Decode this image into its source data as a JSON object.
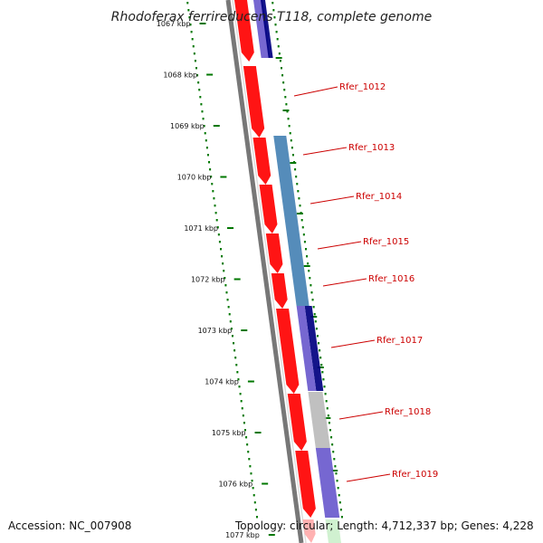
{
  "title": "Rhodoferax ferrireducens T118, complete genome",
  "footer": {
    "accession": "Accession: NC_007908",
    "summary": "Topology: circular; Length: 4,712,337 bp; Genes: 4,228"
  },
  "scale_labels": [
    "1067 kbp",
    "1068 kbp",
    "1069 kbp",
    "1070 kbp",
    "1071 kbp",
    "1072 kbp",
    "1073 kbp",
    "1074 kbp",
    "1075 kbp",
    "1076 kbp",
    "1077 kbp"
  ],
  "gene_labels": [
    "Rfer_1012",
    "Rfer_1013",
    "Rfer_1014",
    "Rfer_1015",
    "Rfer_1016",
    "Rfer_1017",
    "Rfer_1018",
    "Rfer_1019"
  ],
  "colors": {
    "cds_forward": "#ff0000",
    "blue_steel": "#4682b4",
    "navy": "#000080",
    "slate": "#6a5acd",
    "gray": "#bbbbbb",
    "backbone": "#777777",
    "dots": "#007700"
  }
}
